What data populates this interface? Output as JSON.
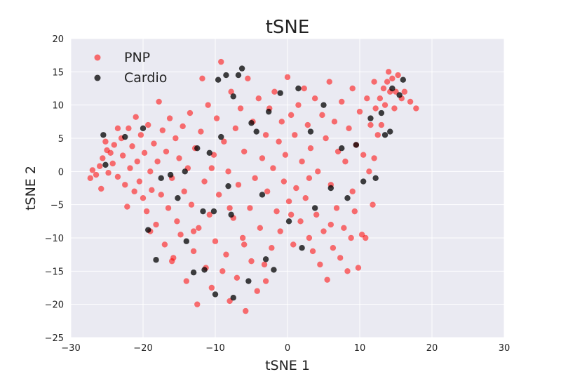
{
  "chart_data": {
    "type": "scatter",
    "title": "tSNE",
    "xlabel": "tSNE 1",
    "ylabel": "tSNE 2",
    "xlim": [
      -30,
      30
    ],
    "ylim": [
      -25,
      20
    ],
    "xticks": [
      -30,
      -20,
      -10,
      0,
      10,
      20,
      30
    ],
    "yticks": [
      -25,
      -20,
      -15,
      -10,
      -5,
      0,
      5,
      10,
      15,
      20
    ],
    "grid": true,
    "legend_position": "top-left",
    "background_color": "#eaeaf2",
    "series": [
      {
        "name": "PNP",
        "color": "#ff0000",
        "points": [
          [
            -27.3,
            -1.0
          ],
          [
            -27.0,
            0.2
          ],
          [
            -26.5,
            -0.5
          ],
          [
            -26.0,
            0.8
          ],
          [
            -25.8,
            -2.6
          ],
          [
            -25.6,
            2.0
          ],
          [
            -25.2,
            4.5
          ],
          [
            -25.0,
            3.2
          ],
          [
            -24.8,
            -0.2
          ],
          [
            -24.5,
            2.8
          ],
          [
            -24.2,
            1.2
          ],
          [
            -24.0,
            4.0
          ],
          [
            -23.5,
            -0.8
          ],
          [
            -23.0,
            5.0
          ],
          [
            -22.8,
            2.4
          ],
          [
            -22.5,
            -2.0
          ],
          [
            -22.2,
            -5.3
          ],
          [
            -22.0,
            6.5
          ],
          [
            -21.8,
            0.5
          ],
          [
            -21.5,
            3.8
          ],
          [
            -21.2,
            -3.0
          ],
          [
            -21.0,
            8.2
          ],
          [
            -20.8,
            1.5
          ],
          [
            -20.5,
            -1.5
          ],
          [
            -20.3,
            5.5
          ],
          [
            -20.0,
            -4.0
          ],
          [
            -19.8,
            2.8
          ],
          [
            -19.5,
            -6.0
          ],
          [
            -19.3,
            7.0
          ],
          [
            -19.0,
            0.0
          ],
          [
            -18.8,
            -2.8
          ],
          [
            -18.5,
            4.2
          ],
          [
            -18.2,
            -8.0
          ],
          [
            -18.0,
            1.5
          ],
          [
            -17.8,
            10.5
          ],
          [
            -17.5,
            -3.5
          ],
          [
            -17.3,
            6.2
          ],
          [
            -17.0,
            -11.0
          ],
          [
            -16.8,
            3.0
          ],
          [
            -16.5,
            -5.5
          ],
          [
            -16.3,
            8.0
          ],
          [
            -16.0,
            -1.0
          ],
          [
            -15.8,
            -13.0
          ],
          [
            -15.5,
            5.0
          ],
          [
            -15.3,
            -7.5
          ],
          [
            -15.0,
            2.0
          ],
          [
            -14.8,
            -9.5
          ],
          [
            -14.5,
            6.8
          ],
          [
            -14.3,
            -3.0
          ],
          [
            -14.0,
            -16.5
          ],
          [
            -13.8,
            0.5
          ],
          [
            -13.5,
            8.8
          ],
          [
            -13.3,
            -5.0
          ],
          [
            -13.0,
            -12.0
          ],
          [
            -12.8,
            3.5
          ],
          [
            -12.5,
            -20.0
          ],
          [
            -12.3,
            -8.5
          ],
          [
            -12.0,
            6.0
          ],
          [
            -11.8,
            14.0
          ],
          [
            -11.5,
            -1.5
          ],
          [
            -11.3,
            -14.5
          ],
          [
            -11.0,
            10.0
          ],
          [
            -10.8,
            -6.5
          ],
          [
            -10.5,
            -17.5
          ],
          [
            -10.2,
            2.5
          ],
          [
            -10.0,
            -10.5
          ],
          [
            -9.8,
            8.0
          ],
          [
            -9.5,
            -3.5
          ],
          [
            -9.2,
            16.5
          ],
          [
            -9.0,
            -15.0
          ],
          [
            -8.8,
            4.5
          ],
          [
            -8.5,
            -12.5
          ],
          [
            -8.2,
            0.0
          ],
          [
            -8.0,
            -19.5
          ],
          [
            -7.8,
            12.0
          ],
          [
            -7.5,
            -7.0
          ],
          [
            -7.2,
            6.5
          ],
          [
            -7.0,
            -16.0
          ],
          [
            -6.8,
            -2.0
          ],
          [
            -6.5,
            9.5
          ],
          [
            -6.2,
            -10.0
          ],
          [
            -6.0,
            3.0
          ],
          [
            -5.8,
            -21.0
          ],
          [
            -5.5,
            14.0
          ],
          [
            -5.2,
            -5.5
          ],
          [
            -5.0,
            -13.5
          ],
          [
            -4.8,
            7.5
          ],
          [
            -4.5,
            -1.0
          ],
          [
            -4.2,
            -18.0
          ],
          [
            -4.0,
            11.0
          ],
          [
            -3.8,
            -8.5
          ],
          [
            -3.5,
            2.0
          ],
          [
            -3.2,
            -14.0
          ],
          [
            -3.0,
            5.5
          ],
          [
            -2.8,
            -3.0
          ],
          [
            -2.5,
            9.5
          ],
          [
            -2.2,
            -11.5
          ],
          [
            -2.0,
            0.5
          ],
          [
            -1.8,
            12.0
          ],
          [
            -1.5,
            -6.0
          ],
          [
            -1.2,
            4.5
          ],
          [
            -1.0,
            -9.0
          ],
          [
            -0.8,
            7.5
          ],
          [
            -0.5,
            -1.5
          ],
          [
            -0.3,
            2.5
          ],
          [
            0.0,
            14.2
          ],
          [
            0.2,
            -4.5
          ],
          [
            0.5,
            8.5
          ],
          [
            0.8,
            -11.0
          ],
          [
            1.0,
            5.5
          ],
          [
            1.2,
            -2.5
          ],
          [
            1.5,
            10.0
          ],
          [
            1.8,
            -7.5
          ],
          [
            2.0,
            1.5
          ],
          [
            2.3,
            12.5
          ],
          [
            2.5,
            -4.0
          ],
          [
            2.8,
            7.0
          ],
          [
            3.0,
            -10.0
          ],
          [
            3.2,
            3.5
          ],
          [
            3.5,
            -12.0
          ],
          [
            3.8,
            11.0
          ],
          [
            4.0,
            -6.5
          ],
          [
            4.2,
            0.0
          ],
          [
            4.5,
            -14.0
          ],
          [
            4.8,
            8.5
          ],
          [
            5.0,
            -9.0
          ],
          [
            5.3,
            5.0
          ],
          [
            5.5,
            -16.3
          ],
          [
            5.8,
            13.5
          ],
          [
            6.0,
            -2.0
          ],
          [
            6.3,
            -11.5
          ],
          [
            6.5,
            7.5
          ],
          [
            6.8,
            -5.5
          ],
          [
            7.0,
            3.0
          ],
          [
            7.3,
            -13.0
          ],
          [
            7.5,
            10.5
          ],
          [
            7.8,
            -8.5
          ],
          [
            8.0,
            1.5
          ],
          [
            8.3,
            -15.0
          ],
          [
            8.5,
            6.5
          ],
          [
            8.8,
            -10.0
          ],
          [
            9.0,
            12.5
          ],
          [
            9.3,
            -6.0
          ],
          [
            9.5,
            4.0
          ],
          [
            9.8,
            -14.5
          ],
          [
            10.0,
            9.0
          ],
          [
            10.3,
            -9.5
          ],
          [
            10.5,
            2.5
          ],
          [
            10.8,
            -10.0
          ],
          [
            11.0,
            11.0
          ],
          [
            11.3,
            0.0
          ],
          [
            11.5,
            7.0
          ],
          [
            11.8,
            -5.0
          ],
          [
            12.0,
            13.5
          ],
          [
            12.2,
            9.5
          ],
          [
            12.5,
            5.5
          ],
          [
            12.8,
            11.0
          ],
          [
            13.0,
            7.0
          ],
          [
            13.3,
            12.5
          ],
          [
            13.5,
            10.0
          ],
          [
            13.8,
            13.5
          ],
          [
            14.0,
            15.0
          ],
          [
            14.2,
            12.0
          ],
          [
            14.5,
            14.0
          ],
          [
            14.8,
            9.5
          ],
          [
            15.0,
            12.0
          ],
          [
            15.3,
            14.5
          ],
          [
            15.8,
            11.0
          ],
          [
            16.2,
            12.0
          ],
          [
            17.0,
            10.5
          ],
          [
            17.8,
            9.5
          ],
          [
            -23.5,
            6.5
          ],
          [
            -19.0,
            -9.0
          ],
          [
            -16.0,
            -13.5
          ],
          [
            -13.0,
            -9.0
          ],
          [
            -10.5,
            0.5
          ],
          [
            -8.0,
            -5.5
          ],
          [
            -6.0,
            -11.0
          ],
          [
            -3.0,
            -16.5
          ],
          [
            0.5,
            -6.5
          ],
          [
            3.0,
            -1.0
          ],
          [
            6.0,
            -8.0
          ],
          [
            9.0,
            -3.0
          ],
          [
            12.0,
            2.0
          ]
        ]
      },
      {
        "name": "Cardio",
        "color": "#000000",
        "points": [
          [
            -25.5,
            5.5
          ],
          [
            -25.2,
            1.0
          ],
          [
            -22.5,
            5.2
          ],
          [
            -20.0,
            6.5
          ],
          [
            -19.3,
            -8.8
          ],
          [
            -18.2,
            -13.3
          ],
          [
            -17.5,
            -1.0
          ],
          [
            -16.2,
            -0.5
          ],
          [
            -15.2,
            -4.0
          ],
          [
            -14.2,
            0.0
          ],
          [
            -13.0,
            -15.2
          ],
          [
            -12.5,
            3.5
          ],
          [
            -11.7,
            -6.0
          ],
          [
            -11.5,
            -14.8
          ],
          [
            -10.8,
            2.8
          ],
          [
            -10.2,
            -6.0
          ],
          [
            -9.6,
            13.8
          ],
          [
            -9.2,
            5.2
          ],
          [
            -8.5,
            14.5
          ],
          [
            -8.2,
            -2.2
          ],
          [
            -7.8,
            -6.5
          ],
          [
            -7.5,
            11.3
          ],
          [
            -6.8,
            14.5
          ],
          [
            -6.3,
            15.5
          ],
          [
            -5.4,
            -16.5
          ],
          [
            -5.0,
            7.3
          ],
          [
            -4.3,
            6.0
          ],
          [
            -3.5,
            -3.5
          ],
          [
            -3.0,
            -13.2
          ],
          [
            -2.6,
            9.0
          ],
          [
            -1.9,
            -14.8
          ],
          [
            -1.0,
            11.8
          ],
          [
            0.2,
            -7.5
          ],
          [
            1.5,
            12.5
          ],
          [
            2.0,
            -11.5
          ],
          [
            3.2,
            6.0
          ],
          [
            3.8,
            -5.5
          ],
          [
            5.0,
            10.0
          ],
          [
            6.0,
            -2.5
          ],
          [
            7.5,
            3.5
          ],
          [
            8.3,
            -4.0
          ],
          [
            9.5,
            4.0
          ],
          [
            10.5,
            -1.5
          ],
          [
            11.5,
            8.0
          ],
          [
            12.2,
            -1.0
          ],
          [
            13.0,
            8.8
          ],
          [
            13.5,
            5.5
          ],
          [
            14.2,
            6.0
          ],
          [
            14.5,
            12.5
          ],
          [
            15.5,
            11.5
          ],
          [
            16.0,
            13.8
          ],
          [
            -14.0,
            -10.5
          ],
          [
            -10.0,
            -18.5
          ],
          [
            -7.5,
            -19.0
          ]
        ]
      }
    ]
  }
}
